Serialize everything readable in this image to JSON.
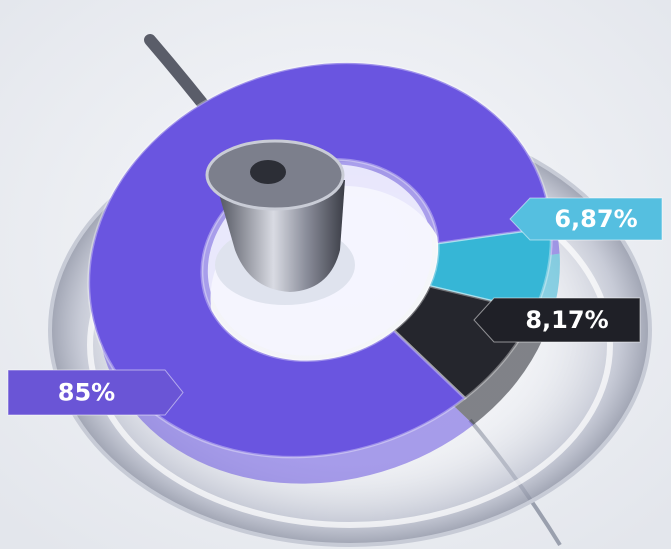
{
  "chart_data": {
    "type": "donut",
    "values": [
      6.87,
      8.17,
      85
    ],
    "value_labels": [
      "6,87%",
      "8,17%",
      "85%"
    ],
    "colors": [
      "#36b6d6",
      "#25262d",
      "#6a55e0"
    ]
  }
}
